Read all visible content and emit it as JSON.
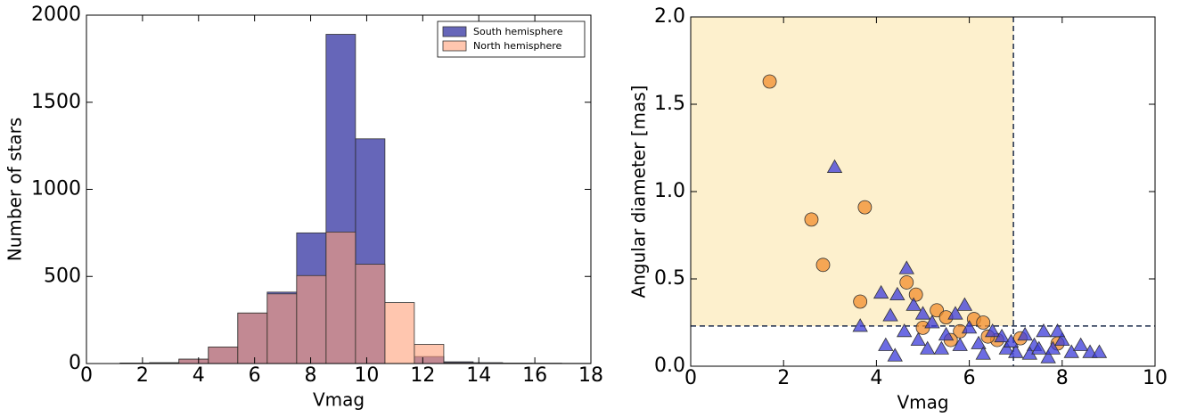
{
  "chart_data": [
    {
      "type": "histogram",
      "xlabel": "Vmag",
      "ylabel": "Number of stars",
      "bins": [
        1.2,
        2.25,
        3.3,
        4.35,
        5.4,
        6.45,
        7.5,
        8.55,
        9.6,
        10.65,
        11.7,
        12.75,
        13.8,
        14.85,
        15.9,
        16.95,
        18.0
      ],
      "series": [
        {
          "name": "South hemisphere",
          "color": "#00008b",
          "values": [
            3,
            5,
            25,
            95,
            290,
            410,
            750,
            1890,
            1290,
            0,
            40,
            10,
            5,
            2,
            1,
            1
          ]
        },
        {
          "name": "North hemisphere",
          "color": "#ffa07a",
          "values": [
            2,
            3,
            25,
            95,
            290,
            400,
            505,
            755,
            570,
            350,
            110,
            5,
            2,
            2,
            2,
            1
          ]
        }
      ],
      "xlim": [
        0,
        18
      ],
      "xticks": [
        0,
        2,
        4,
        6,
        8,
        10,
        12,
        14,
        16,
        18
      ],
      "ylim": [
        0,
        2000
      ],
      "yticks": [
        0,
        500,
        1000,
        1500,
        2000
      ],
      "legend": "upper right"
    },
    {
      "type": "scatter",
      "xlabel": "Vmag",
      "ylabel": "Angular diameter [mas]",
      "series": [
        {
          "marker": "circle",
          "color": "#f28e2b",
          "x": [
            1.7,
            2.6,
            2.85,
            3.75,
            3.65,
            4.65,
            4.85,
            5.3,
            5.5,
            6.1,
            6.3,
            6.6,
            7.9,
            5.0,
            5.8,
            6.4,
            7.1,
            5.6
          ],
          "values": [
            1.63,
            0.84,
            0.58,
            0.91,
            0.37,
            0.48,
            0.41,
            0.32,
            0.28,
            0.27,
            0.25,
            0.15,
            0.13,
            0.22,
            0.2,
            0.17,
            0.16,
            0.15
          ]
        },
        {
          "marker": "triangle",
          "color": "#3b3bd9",
          "x": [
            3.1,
            4.65,
            4.1,
            4.45,
            3.65,
            4.3,
            4.8,
            5.0,
            4.4,
            4.2,
            4.6,
            5.2,
            5.4,
            5.7,
            5.9,
            6.0,
            6.2,
            6.5,
            6.8,
            7.0,
            7.2,
            7.4,
            7.6,
            7.7,
            7.8,
            8.0,
            8.2,
            8.4,
            8.6,
            8.8,
            7.3,
            6.3,
            5.1,
            5.5,
            6.7,
            7.9,
            4.9,
            5.8,
            6.9,
            7.5
          ],
          "values": [
            1.14,
            0.56,
            0.42,
            0.41,
            0.23,
            0.29,
            0.35,
            0.3,
            0.06,
            0.12,
            0.2,
            0.25,
            0.1,
            0.3,
            0.35,
            0.22,
            0.13,
            0.2,
            0.1,
            0.08,
            0.18,
            0.12,
            0.2,
            0.05,
            0.1,
            0.15,
            0.08,
            0.12,
            0.08,
            0.08,
            0.07,
            0.07,
            0.1,
            0.18,
            0.17,
            0.2,
            0.15,
            0.12,
            0.14,
            0.1
          ]
        }
      ],
      "vline": 6.95,
      "hline": 0.23,
      "shade": "#fdf0cd",
      "xlim": [
        0,
        10
      ],
      "xticks": [
        0,
        2,
        4,
        6,
        8,
        10
      ],
      "ylim": [
        0,
        2.0
      ],
      "yticks": [
        {
          "value": 0,
          "label": "0.0"
        },
        0.5,
        {
          "value": 1,
          "label": "1.0"
        },
        1.5,
        {
          "value": 2,
          "label": "2.0"
        }
      ]
    }
  ]
}
